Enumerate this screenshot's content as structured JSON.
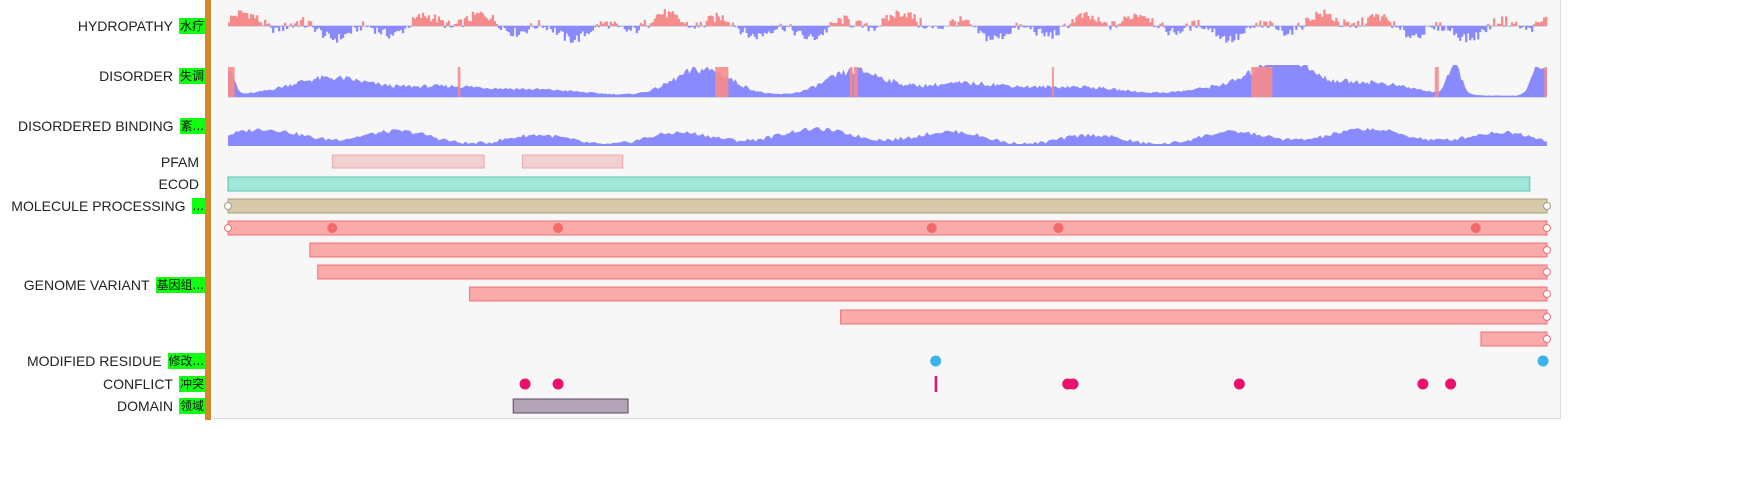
{
  "colors": {
    "hydropathy_positive": "#f78a8a",
    "hydropathy_negative": "#8a8aff",
    "disorder_fill": "#8a8aff",
    "disorder_highlight": "#f78a8a",
    "disordered_binding_fill": "#8a8aff",
    "pfam_fill": "#f2cfcf",
    "pfam_stroke": "#e8a8a8",
    "ecod_fill": "#a2e6d8",
    "ecod_stroke": "#56c7b0",
    "molecule_processing_fill": "#d6c8a8",
    "molecule_processing_stroke": "#a89c78",
    "genome_variant_fill": "#fbaaaa",
    "genome_variant_stroke": "#ec7070",
    "genome_variant_dot": "#f26a6a",
    "modified_residue_dot": "#3db2f0",
    "conflict_dot": "#e8126a",
    "domain_fill": "#b4a4b8",
    "domain_stroke": "#5a4a60",
    "label_tag_bg": "#11ff11",
    "divider": "#d9862a"
  },
  "tracks": [
    {
      "key": "hydropathy",
      "label": "HYDROPATHY",
      "tag": "水疗"
    },
    {
      "key": "disorder",
      "label": "DISORDER",
      "tag": "失调"
    },
    {
      "key": "disordered_binding",
      "label": "DISORDERED BINDING",
      "tag": "紊..."
    },
    {
      "key": "pfam",
      "label": "PFAM",
      "tag": ""
    },
    {
      "key": "ecod",
      "label": "ECOD",
      "tag": ""
    },
    {
      "key": "molecule_processing",
      "label": "MOLECULE PROCESSING",
      "tag": "..."
    },
    {
      "key": "genome_variant",
      "label": "GENOME VARIANT",
      "tag": "基因组..."
    },
    {
      "key": "modified_residue",
      "label": "MODIFIED RESIDUE",
      "tag": "修改..."
    },
    {
      "key": "conflict",
      "label": "CONFLICT",
      "tag": "冲突"
    },
    {
      "key": "domain",
      "label": "DOMAIN",
      "tag": "领域"
    }
  ],
  "sequence_length": 1000,
  "features": {
    "pfam": [
      {
        "start": 80,
        "end": 195
      },
      {
        "start": 224,
        "end": 300
      }
    ],
    "ecod": [
      {
        "start": 1,
        "end": 987
      }
    ],
    "molecule_processing": [
      {
        "start": 1,
        "end": 1000
      }
    ],
    "genome_variant": [
      {
        "start": 1,
        "end": 1000,
        "dots": [
          80,
          251,
          534,
          630,
          946
        ]
      },
      {
        "start": 63,
        "end": 1000,
        "dots": []
      },
      {
        "start": 69,
        "end": 1000,
        "dots": []
      },
      {
        "start": 184,
        "end": 1000,
        "dots": []
      },
      {
        "start": 465,
        "end": 1000,
        "dots": []
      },
      {
        "start": 950,
        "end": 1000,
        "dots": []
      }
    ],
    "modified_residue": [
      537,
      997
    ],
    "conflict_dots": [
      226,
      251,
      637,
      641,
      767,
      906,
      927
    ],
    "conflict_ticks": [
      537
    ],
    "domain": [
      {
        "start": 217,
        "end": 304
      }
    ]
  }
}
